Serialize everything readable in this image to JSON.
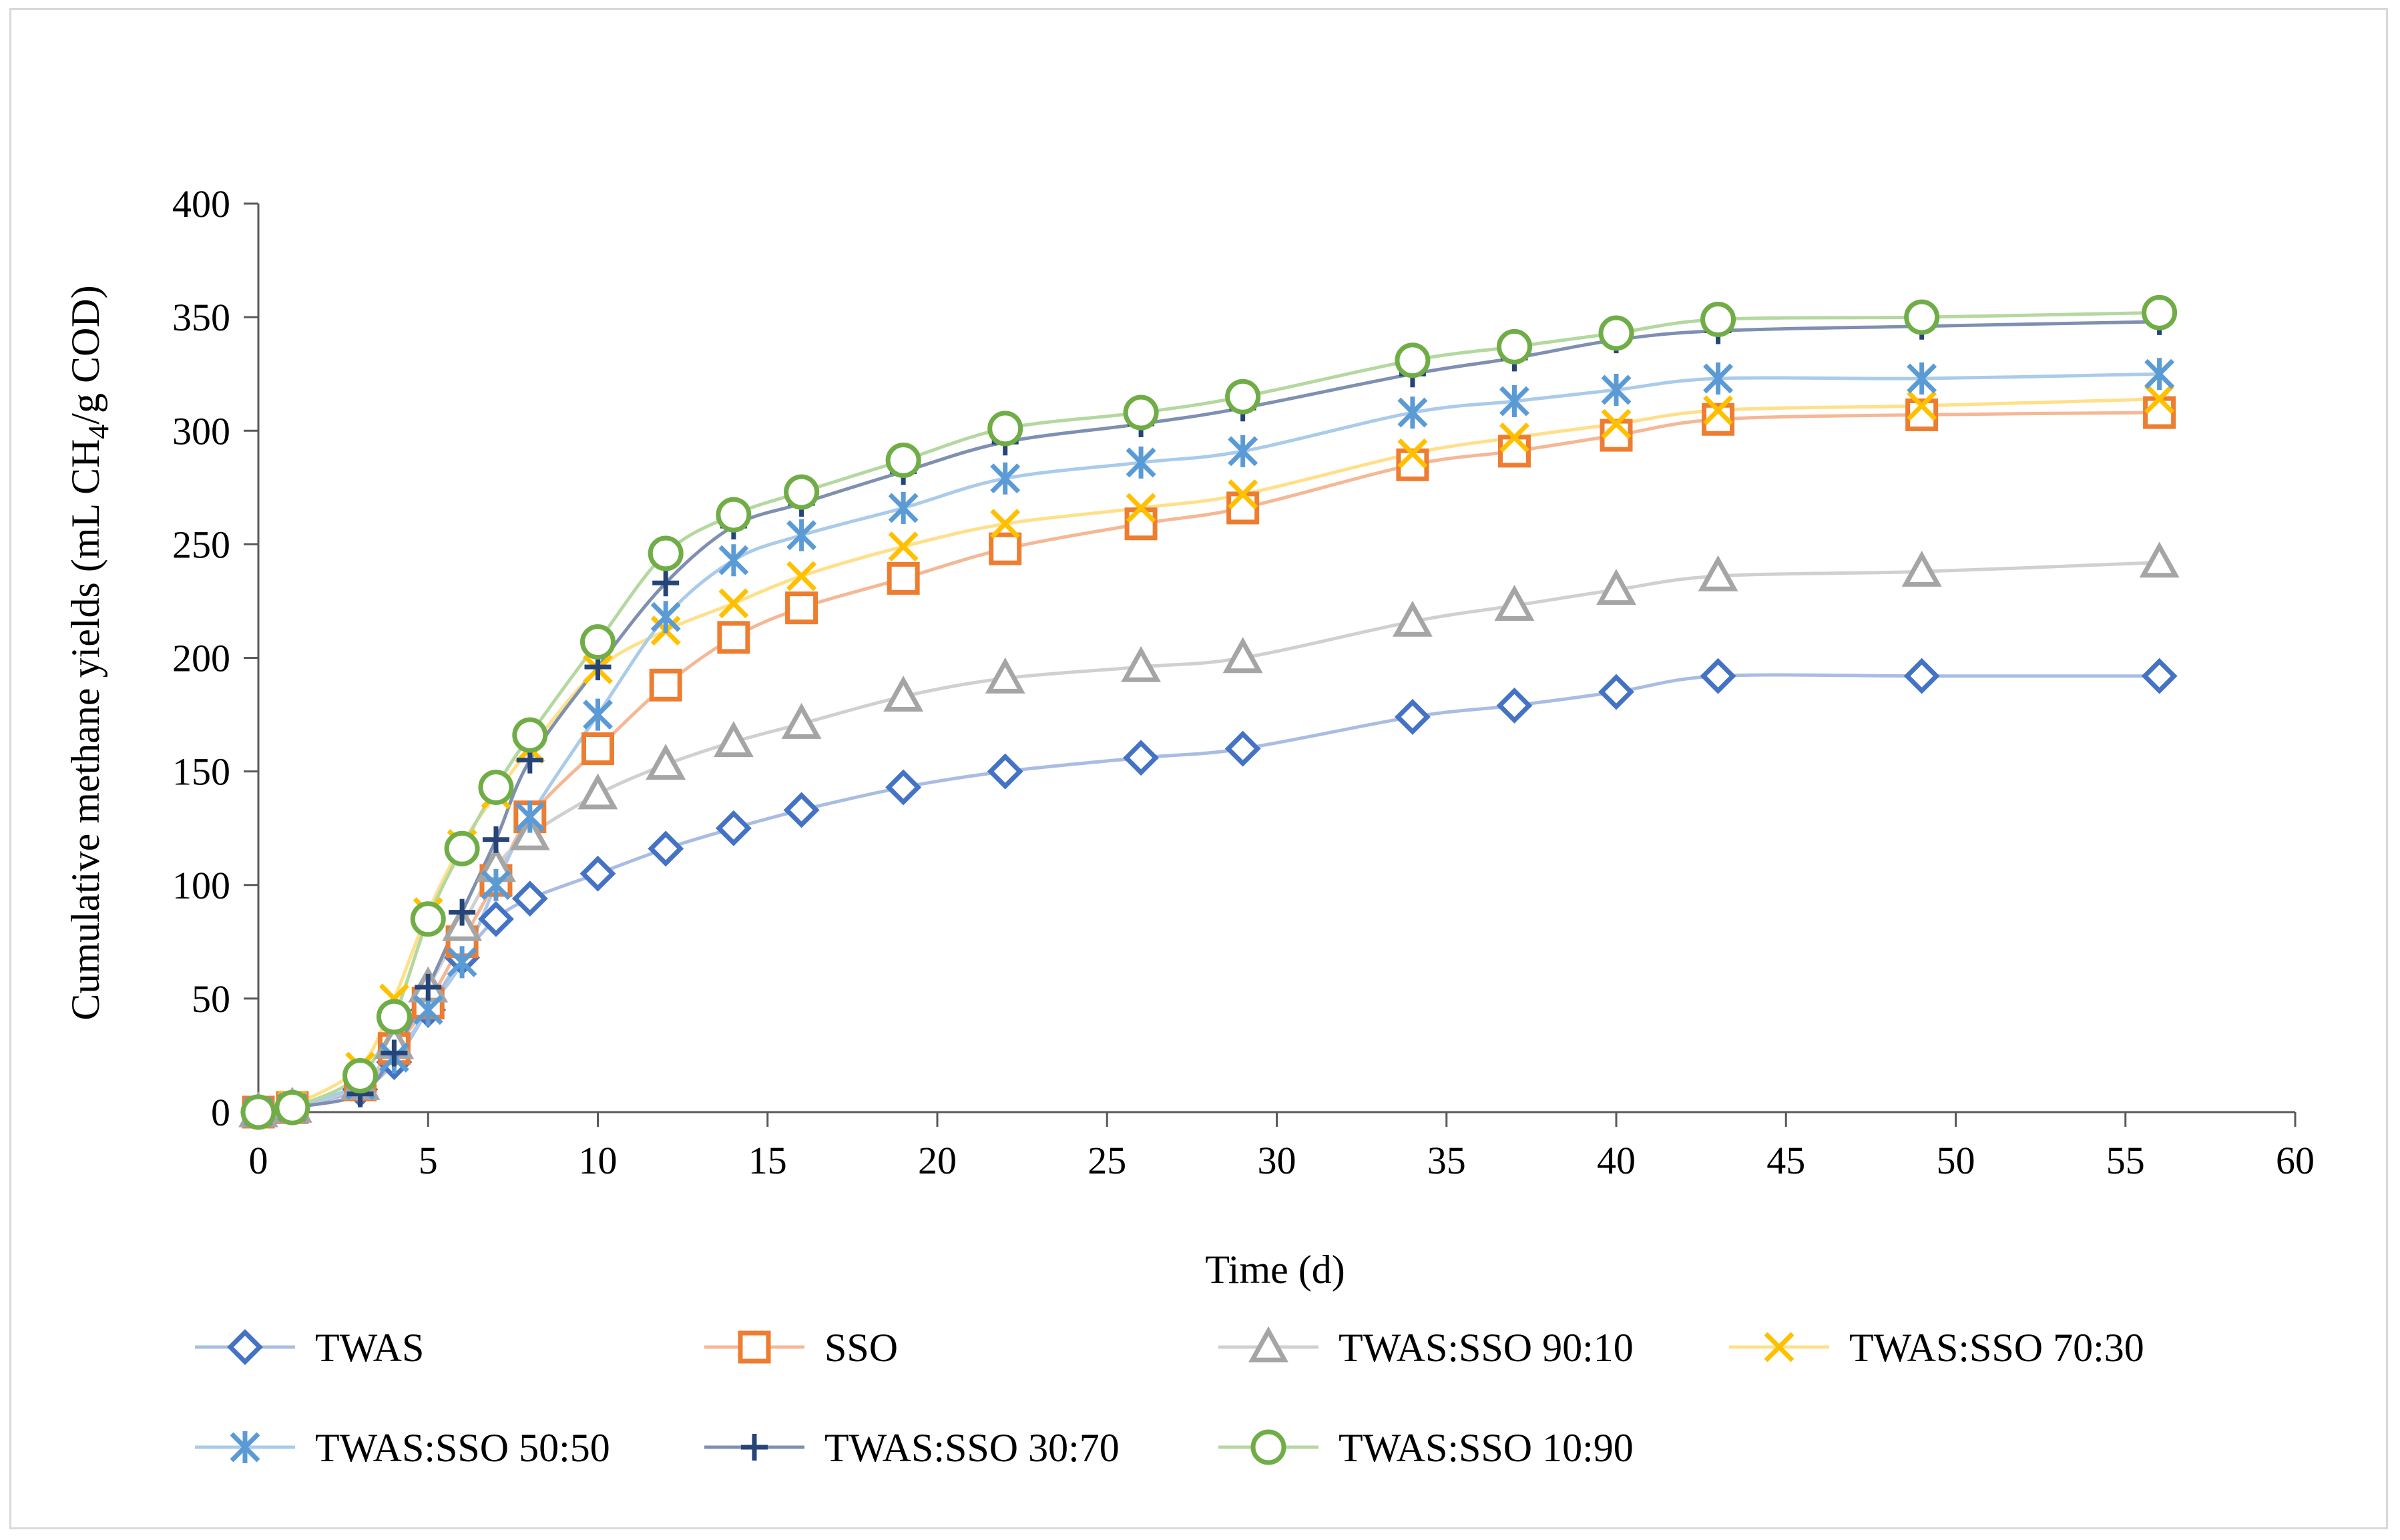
{
  "chart_data": {
    "type": "line",
    "title": "",
    "xlabel": "Time (d)",
    "ylabel_main": "Cumulative methane yields (mL CH",
    "ylabel_sub": "4",
    "ylabel_tail": "/g COD)",
    "xlim": [
      0,
      60
    ],
    "ylim": [
      0,
      400
    ],
    "x_ticks": [
      "0",
      "5",
      "10",
      "15",
      "20",
      "25",
      "30",
      "35",
      "40",
      "45",
      "50",
      "55",
      "60"
    ],
    "y_ticks": [
      "0",
      "50",
      "100",
      "150",
      "200",
      "250",
      "300",
      "350",
      "400"
    ],
    "grid": false,
    "legend_position": "bottom",
    "x": [
      0,
      1,
      3,
      4,
      5,
      6,
      7,
      8,
      10,
      12,
      14,
      16,
      19,
      22,
      26,
      29,
      34,
      37,
      40,
      43,
      49,
      56
    ],
    "series": [
      {
        "name": "TWAS",
        "marker": "diamond",
        "color": "#4472c4",
        "line_color": "#a9bde3",
        "values": [
          0,
          2,
          10,
          22,
          45,
          68,
          85,
          94,
          105,
          116,
          125,
          133,
          143,
          150,
          156,
          160,
          174,
          179,
          185,
          192,
          192,
          192
        ]
      },
      {
        "name": "SSO",
        "marker": "square",
        "color": "#ed7d31",
        "line_color": "#f4b896",
        "values": [
          0,
          2,
          12,
          28,
          48,
          75,
          102,
          130,
          160,
          188,
          209,
          222,
          235,
          248,
          259,
          266,
          285,
          291,
          298,
          305,
          307,
          308
        ]
      },
      {
        "name": "TWAS:SSO 90:10",
        "marker": "triangle",
        "color": "#a5a5a5",
        "line_color": "#d0d0d0",
        "values": [
          0,
          2,
          12,
          30,
          55,
          82,
          108,
          122,
          140,
          153,
          163,
          171,
          183,
          191,
          196,
          200,
          216,
          223,
          230,
          236,
          238,
          242
        ]
      },
      {
        "name": "TWAS:SSO 70:30",
        "marker": "x",
        "color": "#ffc000",
        "line_color": "#ffe08a",
        "values": [
          0,
          3,
          20,
          50,
          88,
          118,
          140,
          160,
          195,
          212,
          224,
          236,
          249,
          259,
          266,
          272,
          290,
          297,
          303,
          309,
          311,
          314
        ]
      },
      {
        "name": "TWAS:SSO 50:50",
        "marker": "asterisk",
        "color": "#5b9bd5",
        "line_color": "#aacbea",
        "values": [
          0,
          2,
          12,
          24,
          45,
          66,
          100,
          130,
          175,
          218,
          243,
          254,
          266,
          279,
          286,
          291,
          308,
          313,
          318,
          323,
          323,
          325
        ]
      },
      {
        "name": "TWAS:SSO 30:70",
        "marker": "plus",
        "color": "#264478",
        "line_color": "#7f8fb0",
        "values": [
          0,
          2,
          8,
          26,
          55,
          88,
          120,
          155,
          196,
          233,
          258,
          268,
          282,
          295,
          303,
          310,
          325,
          332,
          340,
          344,
          346,
          348
        ]
      },
      {
        "name": "TWAS:SSO 10:90",
        "marker": "circle",
        "color": "#70ad47",
        "line_color": "#b4d8a0",
        "values": [
          0,
          2,
          16,
          42,
          85,
          116,
          143,
          166,
          207,
          246,
          263,
          273,
          287,
          301,
          308,
          315,
          331,
          337,
          343,
          349,
          350,
          352
        ]
      }
    ]
  }
}
